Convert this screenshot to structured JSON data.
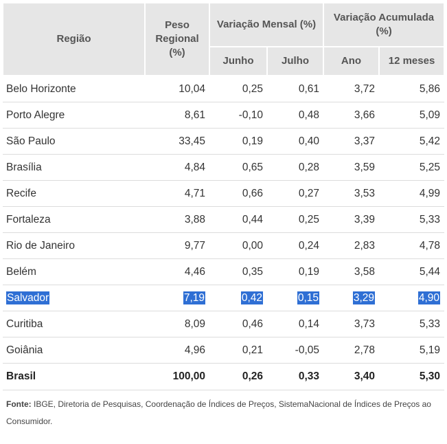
{
  "headers": {
    "regiao": "Região",
    "peso": "Peso Regional (%)",
    "var_mensal": "Variação Mensal (%)",
    "var_acum": "Variação Acumulada (%)",
    "junho": "Junho",
    "julho": "Julho",
    "ano": "Ano",
    "doze_meses": "12 meses"
  },
  "rows": [
    {
      "regiao": "Belo Horizonte",
      "peso": "10,04",
      "junho": "0,25",
      "julho": "0,61",
      "ano": "3,72",
      "doze": "5,86"
    },
    {
      "regiao": "Porto Alegre",
      "peso": "8,61",
      "junho": "-0,10",
      "julho": "0,48",
      "ano": "3,66",
      "doze": "5,09"
    },
    {
      "regiao": "São Paulo",
      "peso": "33,45",
      "junho": "0,19",
      "julho": "0,40",
      "ano": "3,37",
      "doze": "5,42"
    },
    {
      "regiao": "Brasília",
      "peso": "4,84",
      "junho": "0,65",
      "julho": "0,28",
      "ano": "3,59",
      "doze": "5,25"
    },
    {
      "regiao": "Recife",
      "peso": "4,71",
      "junho": "0,66",
      "julho": "0,27",
      "ano": "3,53",
      "doze": "4,99"
    },
    {
      "regiao": "Fortaleza",
      "peso": "3,88",
      "junho": "0,44",
      "julho": "0,25",
      "ano": "3,39",
      "doze": "5,33"
    },
    {
      "regiao": "Rio de Janeiro",
      "peso": "9,77",
      "junho": "0,00",
      "julho": "0,24",
      "ano": "2,83",
      "doze": "4,78"
    },
    {
      "regiao": "Belém",
      "peso": "4,46",
      "junho": "0,35",
      "julho": "0,19",
      "ano": "3,58",
      "doze": "5,44"
    },
    {
      "regiao": "Salvador",
      "peso": "7,19",
      "junho": "0,42",
      "julho": "0,15",
      "ano": "3,29",
      "doze": "4,90"
    },
    {
      "regiao": "Curitiba",
      "peso": "8,09",
      "junho": "0,46",
      "julho": "0,14",
      "ano": "3,73",
      "doze": "5,33"
    },
    {
      "regiao": "Goiânia",
      "peso": "4,96",
      "junho": "0,21",
      "julho": "-0,05",
      "ano": "2,78",
      "doze": "5,19"
    }
  ],
  "total": {
    "regiao": "Brasil",
    "peso": "100,00",
    "junho": "0,26",
    "julho": "0,33",
    "ano": "3,40",
    "doze": "5,30"
  },
  "fonte": {
    "label": "Fonte:",
    "text": "IBGE, Diretoria de Pesquisas, Coordenação de Índices de Preços, SistemaNacional de Índices de Preços ao Consumidor."
  },
  "colors": {
    "header_bg": "#e6e6e6",
    "highlight": "#2f6fd4",
    "border": "#dcdcdc"
  }
}
